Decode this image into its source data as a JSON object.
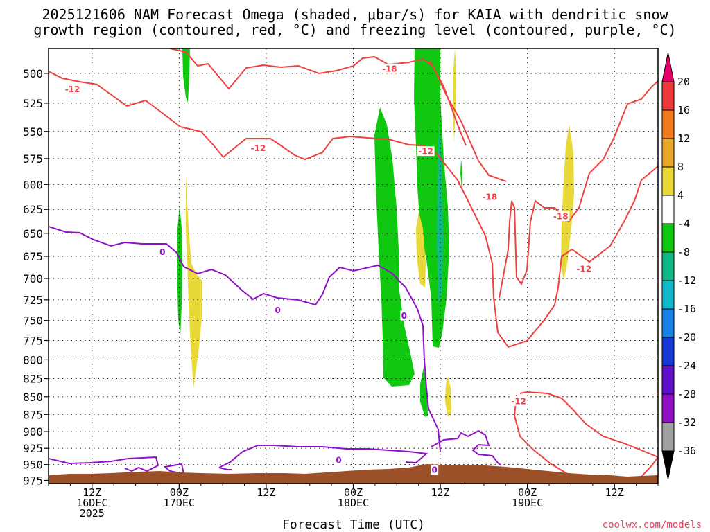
{
  "title": {
    "line1": "2025121606 NAM Forecast Omega (shaded, μbar/s) for KAIA with dendritic snow",
    "line2": "growth region (contoured, red, °C) and freezing level (contoured, purple, °C)"
  },
  "credit": "coolwx.com/models",
  "chart_data": {
    "type": "time-height cross section",
    "title": "2025121606 NAM Forecast Omega (shaded, μbar/s) for KAIA with dendritic snow growth region (contoured, red, °C) and freezing level (contoured, purple, °C)",
    "xlabel": "Forecast Time (UTC)",
    "ylabel": "",
    "x_range_hours": [
      6,
      90
    ],
    "y_range_hpa": [
      980,
      480
    ],
    "y_scale": "log-pressure",
    "grid": true,
    "y_ticks": [
      500,
      525,
      550,
      575,
      600,
      625,
      650,
      675,
      700,
      725,
      750,
      775,
      800,
      825,
      850,
      875,
      900,
      925,
      950,
      975
    ],
    "x_ticks": [
      {
        "hour": 12,
        "line1": "12Z",
        "line2": "16DEC",
        "line3": "2025"
      },
      {
        "hour": 24,
        "line1": "00Z",
        "line2": "17DEC",
        "line3": ""
      },
      {
        "hour": 36,
        "line1": "12Z",
        "line2": "",
        "line3": ""
      },
      {
        "hour": 48,
        "line1": "00Z",
        "line2": "18DEC",
        "line3": ""
      },
      {
        "hour": 60,
        "line1": "12Z",
        "line2": "",
        "line3": ""
      },
      {
        "hour": 72,
        "line1": "00Z",
        "line2": "19DEC",
        "line3": ""
      },
      {
        "hour": 84,
        "line1": "12Z",
        "line2": "",
        "line3": ""
      }
    ],
    "colorbar": {
      "labels": [
        "20",
        "16",
        "12",
        "8",
        "4",
        "-4",
        "-8",
        "-12",
        "-16",
        "-20",
        "-24",
        "-28",
        "-32",
        "-36"
      ],
      "colors": [
        "#e8006c",
        "#ee3a3a",
        "#f07a20",
        "#e6a828",
        "#e8d838",
        "#ffffff",
        "#10c810",
        "#10b888",
        "#10b8c8",
        "#1880e8",
        "#1838d8",
        "#6010c8",
        "#9010c8",
        "#a0a0a0",
        "#000000"
      ]
    },
    "omega_regions": [
      {
        "level": "-4 to -8",
        "color": "#10c810"
      },
      {
        "level": "-8 to -12",
        "color": "#10b888"
      },
      {
        "level": "4 to 8",
        "color": "#e8d838"
      }
    ],
    "contour_labels": [
      {
        "series": "temperature",
        "label": "-12",
        "hour": 9.3,
        "hpa": 513
      },
      {
        "series": "temperature",
        "label": "-12",
        "hour": 34.9,
        "hpa": 565
      },
      {
        "series": "temperature",
        "label": "-18",
        "hour": 53,
        "hpa": 496
      },
      {
        "series": "temperature",
        "label": "-12",
        "hour": 58,
        "hpa": 568
      },
      {
        "series": "temperature",
        "label": "-18",
        "hour": 66.8,
        "hpa": 612
      },
      {
        "series": "temperature",
        "label": "-18",
        "hour": 76.6,
        "hpa": 632
      },
      {
        "series": "temperature",
        "label": "-12",
        "hour": 79.8,
        "hpa": 689
      },
      {
        "series": "temperature",
        "label": "-12",
        "hour": 70.8,
        "hpa": 856
      },
      {
        "series": "freezing_level",
        "label": "0",
        "hour": 21.7,
        "hpa": 670
      },
      {
        "series": "freezing_level",
        "label": "0",
        "hour": 37.6,
        "hpa": 737
      },
      {
        "series": "freezing_level",
        "label": "0",
        "hour": 55,
        "hpa": 744
      },
      {
        "series": "freezing_level",
        "label": "0",
        "hour": 46,
        "hpa": 943
      },
      {
        "series": "freezing_level",
        "label": "0",
        "hour": 59.2,
        "hpa": 958
      }
    ],
    "colors": {
      "temperature": "#f04040",
      "freezing_level": "#9010c8",
      "terrain": "#9c5028"
    }
  }
}
